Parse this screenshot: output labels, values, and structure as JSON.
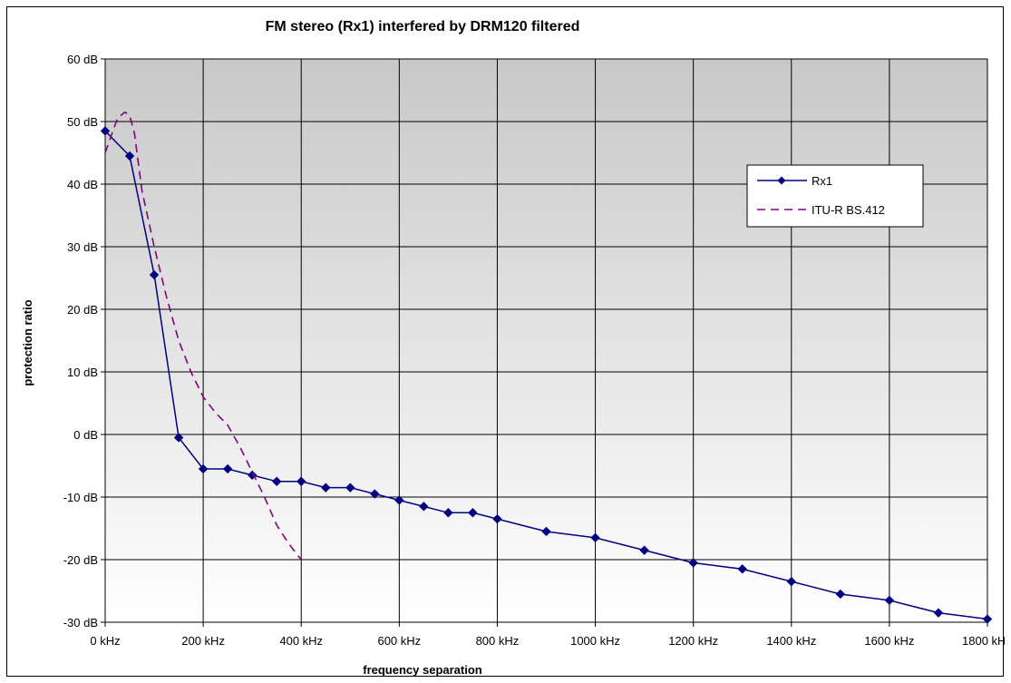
{
  "chart_data": {
    "type": "line",
    "title": "FM stereo (Rx1) interfered by DRM120 filtered",
    "xlabel": "frequency separation",
    "ylabel": "protection ratio",
    "xlim": [
      0,
      1800
    ],
    "ylim": [
      -30,
      60
    ],
    "x_ticks": [
      {
        "value": 0,
        "label": "0 kHz"
      },
      {
        "value": 200,
        "label": "200 kHz"
      },
      {
        "value": 400,
        "label": "400 kHz"
      },
      {
        "value": 600,
        "label": "600 kHz"
      },
      {
        "value": 800,
        "label": "800 kHz"
      },
      {
        "value": 1000,
        "label": "1000 kHz"
      },
      {
        "value": 1200,
        "label": "1200 kHz"
      },
      {
        "value": 1400,
        "label": "1400 kHz"
      },
      {
        "value": 1600,
        "label": "1600 kHz"
      },
      {
        "value": 1800,
        "label": "1800 kHz"
      }
    ],
    "y_ticks": [
      {
        "value": 60,
        "label": "60 dB"
      },
      {
        "value": 50,
        "label": "50 dB"
      },
      {
        "value": 40,
        "label": "40 dB"
      },
      {
        "value": 30,
        "label": "30 dB"
      },
      {
        "value": 20,
        "label": "20 dB"
      },
      {
        "value": 10,
        "label": "10 dB"
      },
      {
        "value": 0,
        "label": "0 dB"
      },
      {
        "value": -10,
        "label": "-10 dB"
      },
      {
        "value": -20,
        "label": "-20 dB"
      },
      {
        "value": -30,
        "label": "-30 dB"
      }
    ],
    "grid": true,
    "legend_position": "right",
    "series": [
      {
        "name": "Rx1",
        "color": "#000080",
        "style": "solid",
        "marker": "diamond",
        "x": [
          0,
          50,
          100,
          150,
          200,
          250,
          300,
          350,
          400,
          450,
          500,
          550,
          600,
          650,
          700,
          750,
          800,
          900,
          1000,
          1100,
          1200,
          1300,
          1400,
          1500,
          1600,
          1700,
          1800
        ],
        "y": [
          48.5,
          44.5,
          25.5,
          -0.5,
          -5.5,
          -5.5,
          -6.5,
          -7.5,
          -7.5,
          -8.5,
          -8.5,
          -9.5,
          -10.5,
          -11.5,
          -12.5,
          -12.5,
          -13.5,
          -15.5,
          -16.5,
          -18.5,
          -20.5,
          -21.5,
          -23.5,
          -25.5,
          -26.5,
          -28.5,
          -29.5
        ]
      },
      {
        "name": "ITU-R BS.412",
        "color": "#800080",
        "style": "dashed",
        "marker": "none",
        "x": [
          0,
          25,
          40,
          50,
          60,
          75,
          100,
          125,
          150,
          175,
          200,
          225,
          250,
          275,
          300,
          325,
          350,
          375,
          400
        ],
        "y": [
          45,
          50.5,
          51.5,
          51,
          48,
          39,
          30,
          22,
          15,
          10,
          6,
          3.5,
          1.5,
          -2,
          -6,
          -10,
          -14.5,
          -17.5,
          -20
        ]
      }
    ],
    "colors": {
      "plot_top": "#c8c8c8",
      "plot_bottom": "#ffffff",
      "grid": "#000000"
    }
  }
}
